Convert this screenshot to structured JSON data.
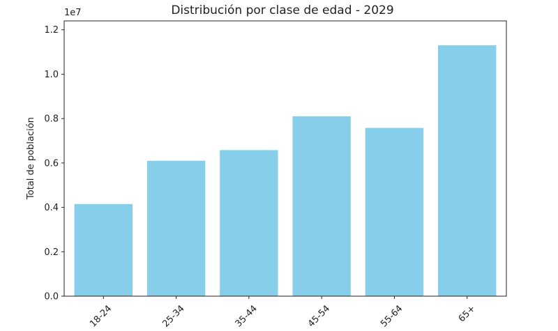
{
  "chart_data": {
    "type": "bar",
    "title": "Distribución por clase de edad - 2029",
    "xlabel": "",
    "ylabel": "Total de población",
    "categories": [
      "18-24",
      "25-34",
      "35-44",
      "45-54",
      "55-64",
      "65+"
    ],
    "values": [
      4150000,
      6100000,
      6580000,
      8100000,
      7580000,
      11300000
    ],
    "ylim": [
      0,
      12400000
    ],
    "y_ticks": [
      0,
      2000000,
      4000000,
      6000000,
      8000000,
      10000000,
      12000000
    ],
    "y_tick_labels": [
      "0.0",
      "0.2",
      "0.4",
      "0.6",
      "0.8",
      "1.0",
      "1.2"
    ],
    "y_offset_label": "1e7",
    "bar_color": "#87CEEB",
    "grid": false,
    "legend": "none"
  }
}
